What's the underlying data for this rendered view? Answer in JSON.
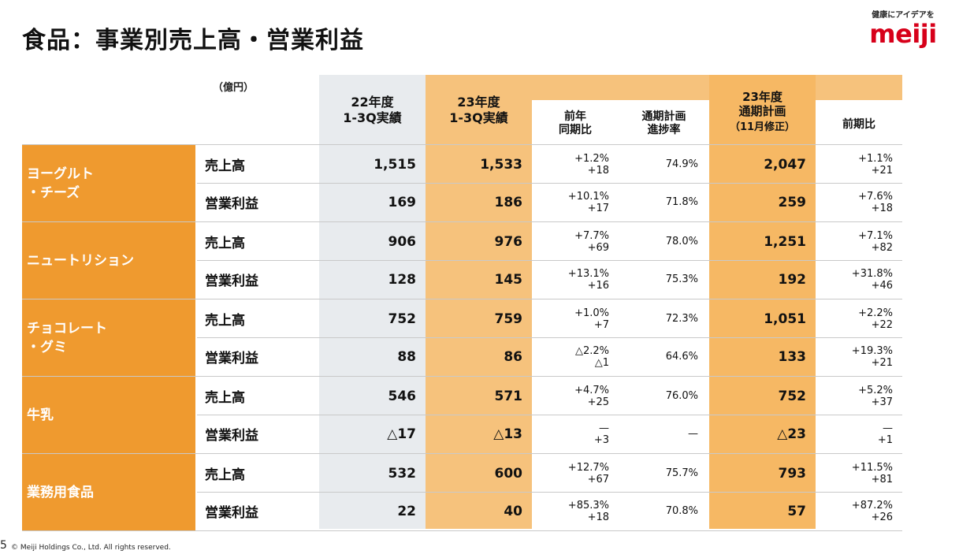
{
  "title": "食品：事業別売上高・営業利益",
  "brand": {
    "tagline": "健康にアイデアを",
    "logo": "meiji"
  },
  "unit": "（億円）",
  "headers": {
    "fy22_actual": [
      "22年度",
      "1-3Q実績"
    ],
    "fy23_actual": [
      "23年度",
      "1-3Q実績"
    ],
    "yoy": [
      "前年",
      "同期比"
    ],
    "progress": [
      "通期計画",
      "進捗率"
    ],
    "fy23_plan": [
      "23年度",
      "通期計画",
      "（11月修正）"
    ],
    "vs_prev": "前期比"
  },
  "segments": [
    {
      "name": "ヨーグルト\n・チーズ",
      "rows": [
        {
          "metric": "売上高",
          "fy22": "1,515",
          "fy23": "1,533",
          "yoy_pct": "+1.2%",
          "yoy_abs": "+18",
          "progress": "74.9%",
          "plan": "2,047",
          "pp_pct": "+1.1%",
          "pp_abs": "+21"
        },
        {
          "metric": "営業利益",
          "fy22": "169",
          "fy23": "186",
          "yoy_pct": "+10.1%",
          "yoy_abs": "+17",
          "progress": "71.8%",
          "plan": "259",
          "pp_pct": "+7.6%",
          "pp_abs": "+18"
        }
      ]
    },
    {
      "name": "ニュートリション",
      "rows": [
        {
          "metric": "売上高",
          "fy22": "906",
          "fy23": "976",
          "yoy_pct": "+7.7%",
          "yoy_abs": "+69",
          "progress": "78.0%",
          "plan": "1,251",
          "pp_pct": "+7.1%",
          "pp_abs": "+82"
        },
        {
          "metric": "営業利益",
          "fy22": "128",
          "fy23": "145",
          "yoy_pct": "+13.1%",
          "yoy_abs": "+16",
          "progress": "75.3%",
          "plan": "192",
          "pp_pct": "+31.8%",
          "pp_abs": "+46"
        }
      ]
    },
    {
      "name": "チョコレート\n・グミ",
      "rows": [
        {
          "metric": "売上高",
          "fy22": "752",
          "fy23": "759",
          "yoy_pct": "+1.0%",
          "yoy_abs": "+7",
          "progress": "72.3%",
          "plan": "1,051",
          "pp_pct": "+2.2%",
          "pp_abs": "+22"
        },
        {
          "metric": "営業利益",
          "fy22": "88",
          "fy23": "86",
          "yoy_pct": "△2.2%",
          "yoy_abs": "△1",
          "progress": "64.6%",
          "plan": "133",
          "pp_pct": "+19.3%",
          "pp_abs": "+21"
        }
      ]
    },
    {
      "name": "牛乳",
      "rows": [
        {
          "metric": "売上高",
          "fy22": "546",
          "fy23": "571",
          "yoy_pct": "+4.7%",
          "yoy_abs": "+25",
          "progress": "76.0%",
          "plan": "752",
          "pp_pct": "+5.2%",
          "pp_abs": "+37"
        },
        {
          "metric": "営業利益",
          "fy22": "△17",
          "fy23": "△13",
          "yoy_pct": "—",
          "yoy_abs": "+3",
          "progress": "—",
          "plan": "△23",
          "pp_pct": "—",
          "pp_abs": "+1"
        }
      ]
    },
    {
      "name": "業務用食品",
      "rows": [
        {
          "metric": "売上高",
          "fy22": "532",
          "fy23": "600",
          "yoy_pct": "+12.7%",
          "yoy_abs": "+67",
          "progress": "75.7%",
          "plan": "793",
          "pp_pct": "+11.5%",
          "pp_abs": "+81"
        },
        {
          "metric": "営業利益",
          "fy22": "22",
          "fy23": "40",
          "yoy_pct": "+85.3%",
          "yoy_abs": "+18",
          "progress": "70.8%",
          "plan": "57",
          "pp_pct": "+87.2%",
          "pp_abs": "+26"
        }
      ]
    }
  ],
  "footer": "© Meiji Holdings Co., Ltd. All rights reserved.",
  "page_number": "5",
  "colors": {
    "segment_orange": "#ef9a2f",
    "actual_orange_light": "#f6c27c",
    "plan_orange": "#f6b864",
    "header_orange": "#f6c27c",
    "gray_column": "#e8ebee",
    "logo_red": "#d7001a"
  }
}
